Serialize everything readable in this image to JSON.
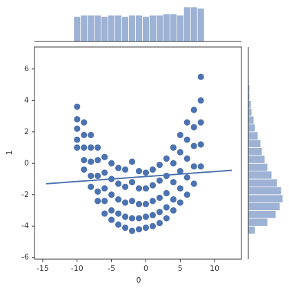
{
  "chart_data": {
    "type": "jointplot",
    "x_label": "0",
    "y_label": "1",
    "color": "#4c72b0",
    "xlim": [
      -16.2,
      13.9
    ],
    "xticks": [
      -15,
      -10,
      -5,
      0,
      5,
      10
    ],
    "ylim": [
      -6.1,
      7.4
    ],
    "yticks": [
      -6,
      -4,
      -2,
      0,
      2,
      4,
      6
    ],
    "points": {
      "x": [
        -10,
        -10,
        -10,
        -10,
        -10,
        -9,
        -9,
        -9,
        -9,
        -9,
        -8,
        -8,
        -8,
        -8,
        -8,
        -7,
        -7,
        -7,
        -7,
        -7,
        -6,
        -6,
        -6,
        -6,
        -6,
        -5,
        -5,
        -5,
        -5,
        -5,
        -4,
        -4,
        -4,
        -4,
        -4,
        -3,
        -3,
        -3,
        -3,
        -3,
        -2,
        -2,
        -2,
        -2,
        -2,
        -1,
        -1,
        -1,
        -1,
        -1,
        0,
        0,
        0,
        0,
        0,
        1,
        1,
        1,
        1,
        1,
        2,
        2,
        2,
        2,
        2,
        3,
        3,
        3,
        3,
        3,
        4,
        4,
        4,
        4,
        4,
        5,
        5,
        5,
        5,
        5,
        6,
        6,
        6,
        6,
        6,
        7,
        7,
        7,
        7,
        7,
        8,
        8,
        8,
        8,
        8
      ],
      "y": [
        3.6,
        2.8,
        2.2,
        1.5,
        1.0,
        2.6,
        1.8,
        1.0,
        0.2,
        -0.4,
        1.8,
        1.0,
        0.1,
        -0.8,
        -1.5,
        1.0,
        0.2,
        -0.8,
        -1.8,
        -2.4,
        0.4,
        -0.6,
        -1.6,
        -2.4,
        -3.2,
        0.0,
        -1.0,
        -2.0,
        -3.0,
        -3.6,
        -0.3,
        -1.3,
        -2.3,
        -3.2,
        -3.9,
        -0.4,
        -1.5,
        -2.5,
        -3.4,
        -4.1,
        0.1,
        -1.2,
        -2.4,
        -3.5,
        -4.3,
        -0.5,
        -1.6,
        -2.6,
        -3.5,
        -4.2,
        -0.6,
        -1.6,
        -2.6,
        -3.4,
        -4.1,
        -0.4,
        -1.4,
        -2.4,
        -3.3,
        -4.0,
        -0.1,
        -1.1,
        -2.2,
        -3.1,
        -3.8,
        0.3,
        -0.8,
        -1.9,
        -2.8,
        -3.5,
        1.0,
        0.0,
        -1.2,
        -2.3,
        -3.0,
        1.8,
        0.7,
        -0.5,
        -1.6,
        -2.5,
        2.6,
        1.5,
        0.3,
        -0.9,
        -2.0,
        3.4,
        2.3,
        1.1,
        -0.2,
        -1.3,
        5.5,
        4.0,
        2.6,
        1.2,
        -0.2
      ]
    },
    "regression": {
      "x": [
        -14.5,
        12.5
      ],
      "y": [
        -1.3,
        -0.45
      ]
    },
    "marginal_x": {
      "bins": [
        -10.5,
        -9.5,
        -8.5,
        -7.5,
        -6.5,
        -5.5,
        -4.5,
        -3.5,
        -2.5,
        -1.5,
        -0.5,
        0.5,
        1.5,
        2.5,
        3.5,
        4.5,
        5.5,
        6.5,
        7.5,
        8.5
      ],
      "counts": [
        36,
        38,
        38,
        38,
        36,
        38,
        38,
        36,
        38,
        38,
        36,
        38,
        38,
        40,
        40,
        38,
        50,
        50,
        48
      ]
    },
    "marginal_y": {
      "bins": [
        -4.5,
        -4,
        -3.5,
        -3,
        -2.5,
        -2,
        -1.5,
        -1,
        -0.5,
        0,
        0.5,
        1,
        1.5,
        2,
        2.5,
        3,
        3.5,
        4,
        4.5,
        5,
        5.5
      ],
      "counts": [
        10,
        28,
        40,
        46,
        50,
        48,
        42,
        34,
        28,
        24,
        20,
        18,
        14,
        10,
        8,
        5,
        4,
        2,
        2,
        1
      ]
    }
  }
}
